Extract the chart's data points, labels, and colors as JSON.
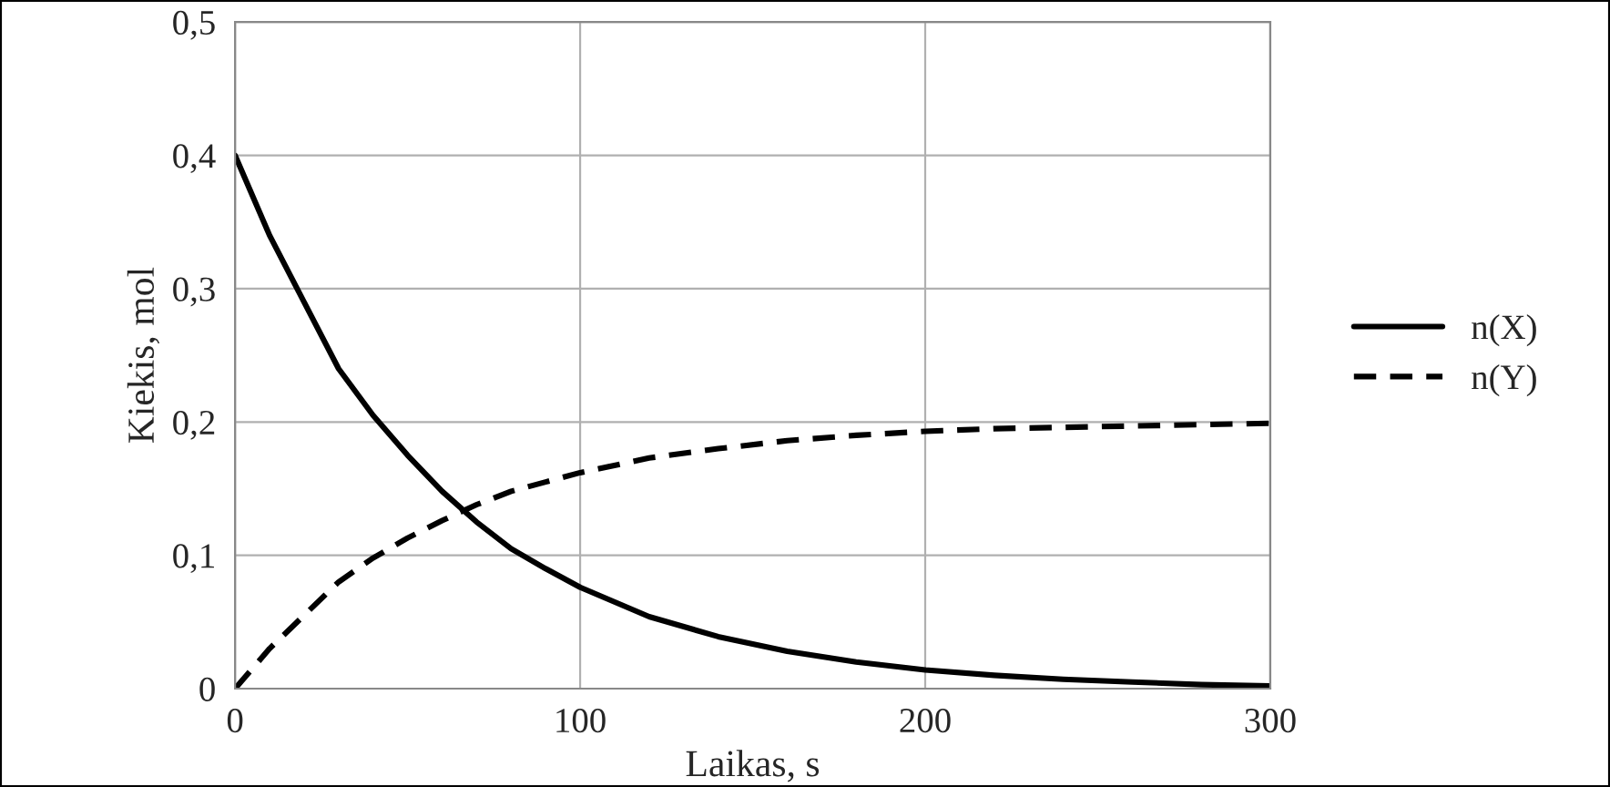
{
  "chart_data": {
    "type": "line",
    "xlabel": "Laikas, s",
    "ylabel": "Kiekis, mol",
    "x": [
      0,
      10,
      20,
      30,
      40,
      50,
      60,
      70,
      80,
      90,
      100,
      120,
      140,
      160,
      180,
      200,
      220,
      240,
      260,
      280,
      300
    ],
    "series": [
      {
        "name": "n(X)",
        "color": "#000000",
        "line_style": "solid",
        "values": [
          0.4,
          0.34,
          0.29,
          0.24,
          0.205,
          0.175,
          0.148,
          0.125,
          0.105,
          0.09,
          0.076,
          0.054,
          0.039,
          0.028,
          0.02,
          0.014,
          0.01,
          0.007,
          0.005,
          0.003,
          0.002
        ]
      },
      {
        "name": "n(Y)",
        "color": "#000000",
        "line_style": "dashed",
        "values": [
          0,
          0.03,
          0.055,
          0.08,
          0.098,
          0.113,
          0.126,
          0.138,
          0.148,
          0.155,
          0.162,
          0.173,
          0.18,
          0.186,
          0.19,
          0.193,
          0.195,
          0.196,
          0.197,
          0.198,
          0.199
        ]
      }
    ],
    "xlim": [
      0,
      300
    ],
    "xticks": [
      0,
      100,
      200,
      300
    ],
    "ylim": [
      0,
      0.5
    ],
    "yticks": [
      0,
      {
        "value": 0.1,
        "label": "0,1"
      },
      {
        "value": 0.2,
        "label": "0,2"
      },
      {
        "value": 0.3,
        "label": "0,3"
      },
      {
        "value": 0.4,
        "label": "0,4"
      },
      {
        "value": 0.5,
        "label": "0,5"
      }
    ],
    "grid": true,
    "legend": "right",
    "marker": "none"
  }
}
